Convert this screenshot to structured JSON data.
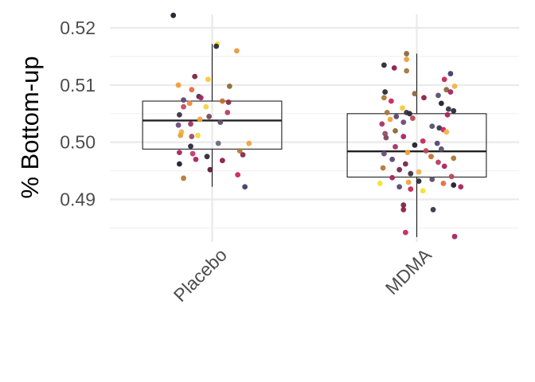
{
  "chart_data": {
    "type": "box",
    "title": "",
    "xlabel": "",
    "ylabel": "% Bottom-up",
    "ylim": [
      0.4845,
      0.5235
    ],
    "yticks": [
      0.49,
      0.5,
      0.51,
      0.52
    ],
    "ytick_labels": [
      "0.49",
      "0.50",
      "0.51",
      "0.52"
    ],
    "categories": [
      "Placebo",
      "MDMA"
    ],
    "boxes": [
      {
        "category": "Placebo",
        "whisker_low": 0.4922,
        "q1": 0.4988,
        "median": 0.5038,
        "q3": 0.5072,
        "whisker_high": 0.5172,
        "outliers": [
          0.5222
        ]
      },
      {
        "category": "MDMA",
        "whisker_low": 0.4834,
        "q1": 0.4939,
        "median": 0.4984,
        "q3": 0.505,
        "whisker_high": 0.5155,
        "outliers": []
      }
    ],
    "points": [
      {
        "category": "Placebo",
        "y": 0.5222,
        "jitter": -0.38,
        "color": "#1f1f2e"
      },
      {
        "category": "Placebo",
        "y": 0.5172,
        "jitter": 0.05,
        "color": "#f4e12f"
      },
      {
        "category": "Placebo",
        "y": 0.5168,
        "jitter": 0.04,
        "color": "#2a2a35"
      },
      {
        "category": "Placebo",
        "y": 0.516,
        "jitter": 0.24,
        "color": "#ef9a3a"
      },
      {
        "category": "Placebo",
        "y": 0.5115,
        "jitter": -0.17,
        "color": "#7a2748"
      },
      {
        "category": "Placebo",
        "y": 0.511,
        "jitter": -0.04,
        "color": "#f6c93a"
      },
      {
        "category": "Placebo",
        "y": 0.51,
        "jitter": -0.33,
        "color": "#f39c36"
      },
      {
        "category": "Placebo",
        "y": 0.5098,
        "jitter": 0.17,
        "color": "#8a6a3a"
      },
      {
        "category": "Placebo",
        "y": 0.5092,
        "jitter": -0.2,
        "color": "#e86c42"
      },
      {
        "category": "Placebo",
        "y": 0.508,
        "jitter": -0.13,
        "color": "#3b3655"
      },
      {
        "category": "Placebo",
        "y": 0.5078,
        "jitter": -0.11,
        "color": "#a8255f"
      },
      {
        "category": "Placebo",
        "y": 0.5074,
        "jitter": -0.28,
        "color": "#594873"
      },
      {
        "category": "Placebo",
        "y": 0.5072,
        "jitter": 0.1,
        "color": "#c46f2d"
      },
      {
        "category": "Placebo",
        "y": 0.507,
        "jitter": 0.16,
        "color": "#8a2d4e"
      },
      {
        "category": "Placebo",
        "y": 0.5068,
        "jitter": -0.22,
        "color": "#ee8a3d"
      },
      {
        "category": "Placebo",
        "y": 0.5062,
        "jitter": -0.28,
        "color": "#c24b66"
      },
      {
        "category": "Placebo",
        "y": 0.5062,
        "jitter": -0.06,
        "color": "#f7d345"
      },
      {
        "category": "Placebo",
        "y": 0.5052,
        "jitter": 0.15,
        "color": "#b83e65"
      },
      {
        "category": "Placebo",
        "y": 0.5048,
        "jitter": -0.32,
        "color": "#3d3347"
      },
      {
        "category": "Placebo",
        "y": 0.5045,
        "jitter": -0.03,
        "color": "#7a4a5a"
      },
      {
        "category": "Placebo",
        "y": 0.504,
        "jitter": -0.12,
        "color": "#f1a23a"
      },
      {
        "category": "Placebo",
        "y": 0.5035,
        "jitter": 0.08,
        "color": "#5a4f6b"
      },
      {
        "category": "Placebo",
        "y": 0.5032,
        "jitter": -0.21,
        "color": "#a7336a"
      },
      {
        "category": "Placebo",
        "y": 0.503,
        "jitter": -0.33,
        "color": "#6b4c7a"
      },
      {
        "category": "Placebo",
        "y": 0.5018,
        "jitter": -0.3,
        "color": "#f3b34a"
      },
      {
        "category": "Placebo",
        "y": 0.5012,
        "jitter": -0.31,
        "color": "#e2a33b"
      },
      {
        "category": "Placebo",
        "y": 0.5012,
        "jitter": -0.14,
        "color": "#f4d93b"
      },
      {
        "category": "Placebo",
        "y": 0.501,
        "jitter": -0.2,
        "color": "#9a4d6a"
      },
      {
        "category": "Placebo",
        "y": 0.4998,
        "jitter": 0.06,
        "color": "#6a6a7a"
      },
      {
        "category": "Placebo",
        "y": 0.4998,
        "jitter": 0.36,
        "color": "#f2a33a"
      },
      {
        "category": "Placebo",
        "y": 0.4993,
        "jitter": -0.21,
        "color": "#2a2a3a"
      },
      {
        "category": "Placebo",
        "y": 0.4985,
        "jitter": 0.27,
        "color": "#b07a38"
      },
      {
        "category": "Placebo",
        "y": 0.498,
        "jitter": -0.19,
        "color": "#c23b6a"
      },
      {
        "category": "Placebo",
        "y": 0.4982,
        "jitter": -0.32,
        "color": "#a5285b"
      },
      {
        "category": "Placebo",
        "y": 0.4978,
        "jitter": 0.3,
        "color": "#8a2a4a"
      },
      {
        "category": "Placebo",
        "y": 0.4975,
        "jitter": -0.05,
        "color": "#2a2a3a"
      },
      {
        "category": "Placebo",
        "y": 0.497,
        "jitter": -0.16,
        "color": "#a8255f"
      },
      {
        "category": "Placebo",
        "y": 0.4968,
        "jitter": 0.1,
        "color": "#8c2148"
      },
      {
        "category": "Placebo",
        "y": 0.4962,
        "jitter": -0.32,
        "color": "#1f1f2e"
      },
      {
        "category": "Placebo",
        "y": 0.4952,
        "jitter": -0.02,
        "color": "#5a1f3a"
      },
      {
        "category": "Placebo",
        "y": 0.4943,
        "jitter": 0.25,
        "color": "#c8285a"
      },
      {
        "category": "Placebo",
        "y": 0.4937,
        "jitter": -0.28,
        "color": "#b07a38"
      },
      {
        "category": "Placebo",
        "y": 0.4922,
        "jitter": 0.32,
        "color": "#4a3a6a"
      },
      {
        "category": "MDMA",
        "y": 0.5155,
        "jitter": -0.1,
        "color": "#8a6a3a"
      },
      {
        "category": "MDMA",
        "y": 0.5145,
        "jitter": -0.1,
        "color": "#e8a23a"
      },
      {
        "category": "MDMA",
        "y": 0.5135,
        "jitter": -0.32,
        "color": "#2a2a3a"
      },
      {
        "category": "MDMA",
        "y": 0.513,
        "jitter": -0.22,
        "color": "#8c2148"
      },
      {
        "category": "MDMA",
        "y": 0.5125,
        "jitter": -0.1,
        "color": "#a07a3a"
      },
      {
        "category": "MDMA",
        "y": 0.512,
        "jitter": 0.33,
        "color": "#4a3a6a"
      },
      {
        "category": "MDMA",
        "y": 0.511,
        "jitter": 0.27,
        "color": "#c8285a"
      },
      {
        "category": "MDMA",
        "y": 0.5098,
        "jitter": 0.37,
        "color": "#f3b34a"
      },
      {
        "category": "MDMA",
        "y": 0.5092,
        "jitter": 0.29,
        "color": "#8a6a3a"
      },
      {
        "category": "MDMA",
        "y": 0.5088,
        "jitter": 0.33,
        "color": "#a8255f"
      },
      {
        "category": "MDMA",
        "y": 0.5088,
        "jitter": -0.31,
        "color": "#2a2a3a"
      },
      {
        "category": "MDMA",
        "y": 0.5085,
        "jitter": -0.02,
        "color": "#8a6a3a"
      },
      {
        "category": "MDMA",
        "y": 0.5082,
        "jitter": 0.21,
        "color": "#5a4f6b"
      },
      {
        "category": "MDMA",
        "y": 0.5078,
        "jitter": -0.32,
        "color": "#b07a38"
      },
      {
        "category": "MDMA",
        "y": 0.5078,
        "jitter": 0.07,
        "color": "#8c2148"
      },
      {
        "category": "MDMA",
        "y": 0.5072,
        "jitter": -0.25,
        "color": "#c8285a"
      },
      {
        "category": "MDMA",
        "y": 0.5068,
        "jitter": 0.24,
        "color": "#1f1f2e"
      },
      {
        "category": "MDMA",
        "y": 0.506,
        "jitter": -0.14,
        "color": "#f6c93a"
      },
      {
        "category": "MDMA",
        "y": 0.5058,
        "jitter": 0.31,
        "color": "#3d3347"
      },
      {
        "category": "MDMA",
        "y": 0.5055,
        "jitter": 0.36,
        "color": "#2a2a3a"
      },
      {
        "category": "MDMA",
        "y": 0.5052,
        "jitter": -0.29,
        "color": "#a07a3a"
      },
      {
        "category": "MDMA",
        "y": 0.5052,
        "jitter": -0.1,
        "color": "#3d3347"
      },
      {
        "category": "MDMA",
        "y": 0.505,
        "jitter": -0.07,
        "color": "#2a2a3a"
      },
      {
        "category": "MDMA",
        "y": 0.5048,
        "jitter": 0.3,
        "color": "#a8255f"
      },
      {
        "category": "MDMA",
        "y": 0.5045,
        "jitter": -0.2,
        "color": "#594873"
      },
      {
        "category": "MDMA",
        "y": 0.5042,
        "jitter": -0.04,
        "color": "#b8495a"
      },
      {
        "category": "MDMA",
        "y": 0.504,
        "jitter": -0.26,
        "color": "#f1a23a"
      },
      {
        "category": "MDMA",
        "y": 0.5035,
        "jitter": -0.13,
        "color": "#6b4c7a"
      },
      {
        "category": "MDMA",
        "y": 0.5032,
        "jitter": -0.34,
        "color": "#a7336a"
      },
      {
        "category": "MDMA",
        "y": 0.5028,
        "jitter": 0.15,
        "color": "#5a4f6b"
      },
      {
        "category": "MDMA",
        "y": 0.5025,
        "jitter": 0.22,
        "color": "#3b3655"
      },
      {
        "category": "MDMA",
        "y": 0.5022,
        "jitter": 0.26,
        "color": "#c8285a"
      },
      {
        "category": "MDMA",
        "y": 0.502,
        "jitter": -0.21,
        "color": "#8a6a3a"
      },
      {
        "category": "MDMA",
        "y": 0.5018,
        "jitter": 0.29,
        "color": "#f3b34a"
      },
      {
        "category": "MDMA",
        "y": 0.5015,
        "jitter": -0.31,
        "color": "#9a4d6a"
      },
      {
        "category": "MDMA",
        "y": 0.501,
        "jitter": -0.13,
        "color": "#a8255f"
      },
      {
        "category": "MDMA",
        "y": 0.5008,
        "jitter": -0.3,
        "color": "#7a4a5a"
      },
      {
        "category": "MDMA",
        "y": 0.5002,
        "jitter": 0.06,
        "color": "#c8285a"
      },
      {
        "category": "MDMA",
        "y": 0.4998,
        "jitter": 0.2,
        "color": "#594873"
      },
      {
        "category": "MDMA",
        "y": 0.4995,
        "jitter": -0.02,
        "color": "#1f1f2e"
      },
      {
        "category": "MDMA",
        "y": 0.4992,
        "jitter": -0.21,
        "color": "#a7336a"
      },
      {
        "category": "MDMA",
        "y": 0.4988,
        "jitter": 0.24,
        "color": "#5a4f6b"
      },
      {
        "category": "MDMA",
        "y": 0.4985,
        "jitter": 0.09,
        "color": "#b8495a"
      },
      {
        "category": "MDMA",
        "y": 0.4982,
        "jitter": -0.09,
        "color": "#f1a23a"
      },
      {
        "category": "MDMA",
        "y": 0.498,
        "jitter": -0.32,
        "color": "#6b4c7a"
      },
      {
        "category": "MDMA",
        "y": 0.4975,
        "jitter": 0.14,
        "color": "#c46f2d"
      },
      {
        "category": "MDMA",
        "y": 0.4972,
        "jitter": 0.36,
        "color": "#a07a3a"
      },
      {
        "category": "MDMA",
        "y": 0.497,
        "jitter": -0.24,
        "color": "#594873"
      },
      {
        "category": "MDMA",
        "y": 0.4965,
        "jitter": 0.21,
        "color": "#b83e65"
      },
      {
        "category": "MDMA",
        "y": 0.4962,
        "jitter": -0.11,
        "color": "#7a2748"
      },
      {
        "category": "MDMA",
        "y": 0.4958,
        "jitter": 0.27,
        "color": "#a8255f"
      },
      {
        "category": "MDMA",
        "y": 0.4955,
        "jitter": -0.33,
        "color": "#b07a38"
      },
      {
        "category": "MDMA",
        "y": 0.4952,
        "jitter": -0.17,
        "color": "#7a2748"
      },
      {
        "category": "MDMA",
        "y": 0.4948,
        "jitter": 0.02,
        "color": "#f3b34a"
      },
      {
        "category": "MDMA",
        "y": 0.4945,
        "jitter": -0.06,
        "color": "#3d3347"
      },
      {
        "category": "MDMA",
        "y": 0.494,
        "jitter": 0.34,
        "color": "#b8495a"
      },
      {
        "category": "MDMA",
        "y": 0.4938,
        "jitter": -0.24,
        "color": "#a8255f"
      },
      {
        "category": "MDMA",
        "y": 0.4935,
        "jitter": 0.15,
        "color": "#5a4f6b"
      },
      {
        "category": "MDMA",
        "y": 0.4932,
        "jitter": 0.02,
        "color": "#2a2a3a"
      },
      {
        "category": "MDMA",
        "y": 0.493,
        "jitter": -0.08,
        "color": "#f1a23a"
      },
      {
        "category": "MDMA",
        "y": 0.4928,
        "jitter": -0.36,
        "color": "#f4e12f"
      },
      {
        "category": "MDMA",
        "y": 0.4928,
        "jitter": 0.26,
        "color": "#e86c42"
      },
      {
        "category": "MDMA",
        "y": 0.4925,
        "jitter": 0.36,
        "color": "#1f1f2e"
      },
      {
        "category": "MDMA",
        "y": 0.4922,
        "jitter": -0.17,
        "color": "#594873"
      },
      {
        "category": "MDMA",
        "y": 0.4922,
        "jitter": 0.43,
        "color": "#a8255f"
      },
      {
        "category": "MDMA",
        "y": 0.4918,
        "jitter": -0.06,
        "color": "#c8285a"
      },
      {
        "category": "MDMA",
        "y": 0.4915,
        "jitter": 0.06,
        "color": "#f4e12f"
      },
      {
        "category": "MDMA",
        "y": 0.489,
        "jitter": -0.13,
        "color": "#7a2748"
      },
      {
        "category": "MDMA",
        "y": 0.4882,
        "jitter": -0.13,
        "color": "#8c2148"
      },
      {
        "category": "MDMA",
        "y": 0.4882,
        "jitter": 0.16,
        "color": "#3d3347"
      },
      {
        "category": "MDMA",
        "y": 0.4842,
        "jitter": -0.11,
        "color": "#c8285a"
      },
      {
        "category": "MDMA",
        "y": 0.4835,
        "jitter": 0.37,
        "color": "#a8255f"
      }
    ],
    "grid": true,
    "legend": "none",
    "colors": {
      "panel_grid_major": "#ebebeb",
      "panel_grid_minor": "#f2f2f2",
      "box_line": "#222222",
      "tick_label": "#4d4d4d",
      "axis_title": "#000000"
    }
  }
}
